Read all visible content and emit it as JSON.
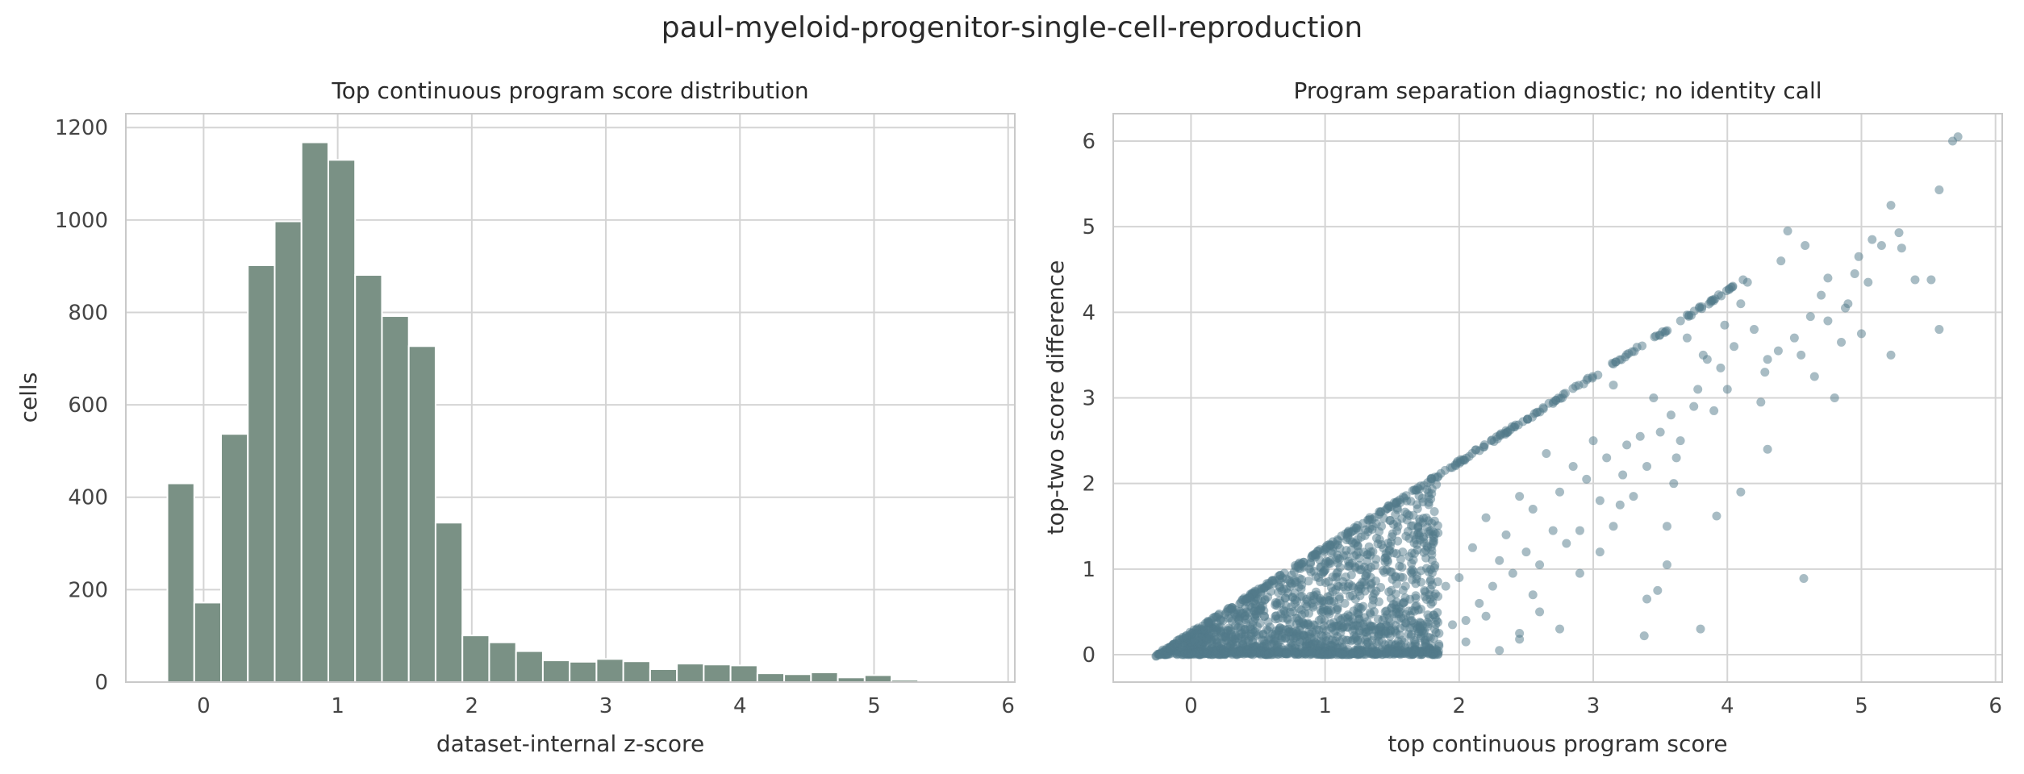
{
  "suptitle": "paul-myeloid-progenitor-single-cell-reproduction",
  "colors": {
    "bar": "#7a9185",
    "point": "#51798a",
    "grid": "#d4d4d4",
    "spine": "#c9c9c9"
  },
  "chart_data": [
    {
      "type": "bar",
      "title": "Top continuous program score distribution",
      "xlabel": "dataset-internal z-score",
      "ylabel": "cells",
      "xlim": [
        -0.58,
        6.05
      ],
      "ylim": [
        0,
        1230
      ],
      "xticks": [
        0,
        1,
        2,
        3,
        4,
        5,
        6
      ],
      "yticks": [
        0,
        200,
        400,
        600,
        800,
        1000,
        1200
      ],
      "bin_start": -0.27,
      "bin_width": 0.2,
      "values": [
        430,
        172,
        537,
        902,
        997,
        1168,
        1130,
        881,
        792,
        727,
        345,
        101,
        86,
        67,
        47,
        44,
        50,
        45,
        28,
        40,
        38,
        36,
        19,
        17,
        21,
        10,
        15,
        5,
        2,
        2,
        1
      ],
      "grid": true
    },
    {
      "type": "scatter",
      "title": "Program separation diagnostic; no identity call",
      "xlabel": "top continuous program score",
      "ylabel": "top-two score difference",
      "xlim": [
        -0.58,
        6.05
      ],
      "ylim": [
        -0.32,
        6.32
      ],
      "xticks": [
        0,
        1,
        2,
        3,
        4,
        5,
        6
      ],
      "yticks": [
        0,
        1,
        2,
        3,
        4,
        5,
        6
      ],
      "points": [
        [
          5.58,
          5.43
        ],
        [
          5.68,
          6.0
        ],
        [
          5.72,
          6.05
        ],
        [
          5.52,
          4.38
        ],
        [
          5.58,
          3.8
        ],
        [
          5.28,
          4.93
        ],
        [
          5.4,
          4.38
        ],
        [
          5.3,
          4.75
        ],
        [
          5.22,
          5.25
        ],
        [
          5.22,
          3.5
        ],
        [
          5.15,
          4.78
        ],
        [
          5.08,
          4.85
        ],
        [
          5.05,
          4.35
        ],
        [
          4.98,
          4.65
        ],
        [
          4.95,
          4.45
        ],
        [
          4.9,
          4.1
        ],
        [
          4.88,
          4.05
        ],
        [
          4.85,
          3.65
        ],
        [
          4.75,
          4.4
        ],
        [
          4.75,
          3.9
        ],
        [
          4.7,
          4.2
        ],
        [
          4.62,
          3.95
        ],
        [
          4.55,
          3.5
        ],
        [
          4.5,
          3.7
        ],
        [
          4.58,
          4.78
        ],
        [
          4.45,
          4.95
        ],
        [
          4.4,
          4.6
        ],
        [
          4.38,
          3.55
        ],
        [
          4.3,
          3.45
        ],
        [
          4.28,
          3.3
        ],
        [
          4.2,
          3.8
        ],
        [
          4.15,
          4.35
        ],
        [
          4.1,
          4.1
        ],
        [
          4.05,
          3.6
        ],
        [
          4.0,
          3.1
        ],
        [
          3.98,
          3.85
        ],
        [
          3.95,
          3.35
        ],
        [
          3.9,
          2.85
        ],
        [
          3.85,
          3.45
        ],
        [
          3.82,
          3.5
        ],
        [
          3.78,
          3.1
        ],
        [
          3.75,
          2.9
        ],
        [
          3.7,
          3.7
        ],
        [
          3.65,
          2.5
        ],
        [
          3.62,
          2.3
        ],
        [
          3.58,
          2.8
        ],
        [
          3.55,
          1.5
        ],
        [
          3.5,
          2.6
        ],
        [
          3.45,
          3.0
        ],
        [
          3.4,
          2.2
        ],
        [
          3.35,
          2.55
        ],
        [
          3.3,
          1.85
        ],
        [
          3.25,
          2.45
        ],
        [
          3.2,
          1.75
        ],
        [
          3.15,
          3.15
        ],
        [
          3.1,
          2.3
        ],
        [
          3.05,
          1.8
        ],
        [
          3.0,
          2.5
        ],
        [
          2.95,
          2.05
        ],
        [
          2.9,
          1.45
        ],
        [
          2.85,
          2.2
        ],
        [
          2.8,
          1.3
        ],
        [
          2.75,
          1.9
        ],
        [
          2.7,
          1.45
        ],
        [
          2.65,
          2.35
        ],
        [
          2.6,
          1.05
        ],
        [
          2.55,
          1.7
        ],
        [
          2.5,
          1.2
        ],
        [
          2.45,
          1.85
        ],
        [
          2.4,
          0.95
        ],
        [
          2.35,
          1.4
        ],
        [
          2.3,
          1.1
        ],
        [
          2.25,
          0.8
        ],
        [
          2.2,
          1.6
        ],
        [
          2.15,
          0.6
        ],
        [
          2.1,
          1.25
        ],
        [
          2.05,
          0.4
        ],
        [
          2.0,
          0.9
        ],
        [
          1.95,
          0.35
        ],
        [
          1.9,
          0.8
        ],
        [
          3.48,
          0.75
        ],
        [
          3.38,
          0.22
        ],
        [
          3.4,
          0.65
        ],
        [
          3.8,
          0.3
        ],
        [
          3.92,
          1.62
        ],
        [
          4.57,
          0.89
        ],
        [
          4.1,
          1.9
        ],
        [
          4.3,
          2.4
        ],
        [
          2.45,
          0.25
        ],
        [
          2.45,
          0.18
        ],
        [
          2.2,
          0.45
        ],
        [
          2.6,
          0.5
        ],
        [
          2.9,
          0.95
        ],
        [
          3.05,
          1.2
        ],
        [
          3.55,
          1.05
        ],
        [
          3.6,
          2.0
        ],
        [
          4.25,
          2.95
        ],
        [
          4.65,
          3.25
        ],
        [
          4.8,
          3.0
        ],
        [
          5.0,
          3.75
        ],
        [
          2.75,
          0.3
        ],
        [
          2.3,
          0.05
        ],
        [
          1.85,
          0.25
        ],
        [
          2.05,
          0.15
        ],
        [
          2.55,
          0.7
        ],
        [
          3.15,
          1.5
        ],
        [
          3.22,
          2.1
        ]
      ],
      "grid": true
    }
  ]
}
